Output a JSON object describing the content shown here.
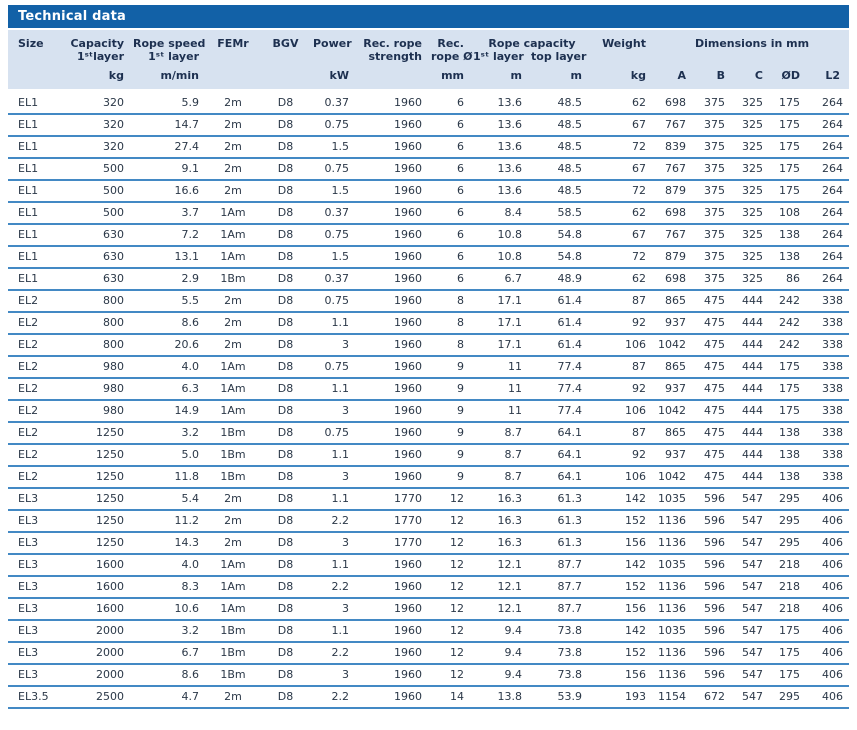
{
  "title": "Technical data",
  "header": {
    "size": "Size",
    "capacity_l1": "Capacity",
    "capacity_l2": "1ˢᵗlayer",
    "speed_l1": "Rope speed",
    "speed_l2": "1ˢᵗ layer",
    "femr": "FEMr",
    "bgv": "BGV",
    "power": "Power",
    "strength_l1": "Rec. rope",
    "strength_l2": "strength",
    "dia_l1": "Rec.",
    "dia_l2": "rope Ø*",
    "rope_capacity": "Rope capacity",
    "rc_first": "1ˢᵗ layer",
    "rc_top": "top layer",
    "weight": "Weight",
    "dimensions": "Dimensions in mm"
  },
  "units": [
    "",
    "kg",
    "m/min",
    "",
    "",
    "kW",
    "",
    "mm",
    "m",
    "m",
    "kg",
    "A",
    "B",
    "C",
    "ØD",
    "L2"
  ],
  "rows": [
    [
      "EL1",
      "320",
      "5.9",
      "2m",
      "D8",
      "0.37",
      "1960",
      "6",
      "13.6",
      "48.5",
      "62",
      "698",
      "375",
      "325",
      "175",
      "264"
    ],
    [
      "EL1",
      "320",
      "14.7",
      "2m",
      "D8",
      "0.75",
      "1960",
      "6",
      "13.6",
      "48.5",
      "67",
      "767",
      "375",
      "325",
      "175",
      "264"
    ],
    [
      "EL1",
      "320",
      "27.4",
      "2m",
      "D8",
      "1.5",
      "1960",
      "6",
      "13.6",
      "48.5",
      "72",
      "839",
      "375",
      "325",
      "175",
      "264"
    ],
    [
      "EL1",
      "500",
      "9.1",
      "2m",
      "D8",
      "0.75",
      "1960",
      "6",
      "13.6",
      "48.5",
      "67",
      "767",
      "375",
      "325",
      "175",
      "264"
    ],
    [
      "EL1",
      "500",
      "16.6",
      "2m",
      "D8",
      "1.5",
      "1960",
      "6",
      "13.6",
      "48.5",
      "72",
      "879",
      "375",
      "325",
      "175",
      "264"
    ],
    [
      "EL1",
      "500",
      "3.7",
      "1Am",
      "D8",
      "0.37",
      "1960",
      "6",
      "8.4",
      "58.5",
      "62",
      "698",
      "375",
      "325",
      "108",
      "264"
    ],
    [
      "EL1",
      "630",
      "7.2",
      "1Am",
      "D8",
      "0.75",
      "1960",
      "6",
      "10.8",
      "54.8",
      "67",
      "767",
      "375",
      "325",
      "138",
      "264"
    ],
    [
      "EL1",
      "630",
      "13.1",
      "1Am",
      "D8",
      "1.5",
      "1960",
      "6",
      "10.8",
      "54.8",
      "72",
      "879",
      "375",
      "325",
      "138",
      "264"
    ],
    [
      "EL1",
      "630",
      "2.9",
      "1Bm",
      "D8",
      "0.37",
      "1960",
      "6",
      "6.7",
      "48.9",
      "62",
      "698",
      "375",
      "325",
      "86",
      "264"
    ],
    [
      "EL2",
      "800",
      "5.5",
      "2m",
      "D8",
      "0.75",
      "1960",
      "8",
      "17.1",
      "61.4",
      "87",
      "865",
      "475",
      "444",
      "242",
      "338"
    ],
    [
      "EL2",
      "800",
      "8.6",
      "2m",
      "D8",
      "1.1",
      "1960",
      "8",
      "17.1",
      "61.4",
      "92",
      "937",
      "475",
      "444",
      "242",
      "338"
    ],
    [
      "EL2",
      "800",
      "20.6",
      "2m",
      "D8",
      "3",
      "1960",
      "8",
      "17.1",
      "61.4",
      "106",
      "1042",
      "475",
      "444",
      "242",
      "338"
    ],
    [
      "EL2",
      "980",
      "4.0",
      "1Am",
      "D8",
      "0.75",
      "1960",
      "9",
      "11",
      "77.4",
      "87",
      "865",
      "475",
      "444",
      "175",
      "338"
    ],
    [
      "EL2",
      "980",
      "6.3",
      "1Am",
      "D8",
      "1.1",
      "1960",
      "9",
      "11",
      "77.4",
      "92",
      "937",
      "475",
      "444",
      "175",
      "338"
    ],
    [
      "EL2",
      "980",
      "14.9",
      "1Am",
      "D8",
      "3",
      "1960",
      "9",
      "11",
      "77.4",
      "106",
      "1042",
      "475",
      "444",
      "175",
      "338"
    ],
    [
      "EL2",
      "1250",
      "3.2",
      "1Bm",
      "D8",
      "0.75",
      "1960",
      "9",
      "8.7",
      "64.1",
      "87",
      "865",
      "475",
      "444",
      "138",
      "338"
    ],
    [
      "EL2",
      "1250",
      "5.0",
      "1Bm",
      "D8",
      "1.1",
      "1960",
      "9",
      "8.7",
      "64.1",
      "92",
      "937",
      "475",
      "444",
      "138",
      "338"
    ],
    [
      "EL2",
      "1250",
      "11.8",
      "1Bm",
      "D8",
      "3",
      "1960",
      "9",
      "8.7",
      "64.1",
      "106",
      "1042",
      "475",
      "444",
      "138",
      "338"
    ],
    [
      "EL3",
      "1250",
      "5.4",
      "2m",
      "D8",
      "1.1",
      "1770",
      "12",
      "16.3",
      "61.3",
      "142",
      "1035",
      "596",
      "547",
      "295",
      "406"
    ],
    [
      "EL3",
      "1250",
      "11.2",
      "2m",
      "D8",
      "2.2",
      "1770",
      "12",
      "16.3",
      "61.3",
      "152",
      "1136",
      "596",
      "547",
      "295",
      "406"
    ],
    [
      "EL3",
      "1250",
      "14.3",
      "2m",
      "D8",
      "3",
      "1770",
      "12",
      "16.3",
      "61.3",
      "156",
      "1136",
      "596",
      "547",
      "295",
      "406"
    ],
    [
      "EL3",
      "1600",
      "4.0",
      "1Am",
      "D8",
      "1.1",
      "1960",
      "12",
      "12.1",
      "87.7",
      "142",
      "1035",
      "596",
      "547",
      "218",
      "406"
    ],
    [
      "EL3",
      "1600",
      "8.3",
      "1Am",
      "D8",
      "2.2",
      "1960",
      "12",
      "12.1",
      "87.7",
      "152",
      "1136",
      "596",
      "547",
      "218",
      "406"
    ],
    [
      "EL3",
      "1600",
      "10.6",
      "1Am",
      "D8",
      "3",
      "1960",
      "12",
      "12.1",
      "87.7",
      "156",
      "1136",
      "596",
      "547",
      "218",
      "406"
    ],
    [
      "EL3",
      "2000",
      "3.2",
      "1Bm",
      "D8",
      "1.1",
      "1960",
      "12",
      "9.4",
      "73.8",
      "142",
      "1035",
      "596",
      "547",
      "175",
      "406"
    ],
    [
      "EL3",
      "2000",
      "6.7",
      "1Bm",
      "D8",
      "2.2",
      "1960",
      "12",
      "9.4",
      "73.8",
      "152",
      "1136",
      "596",
      "547",
      "175",
      "406"
    ],
    [
      "EL3",
      "2000",
      "8.6",
      "1Bm",
      "D8",
      "3",
      "1960",
      "12",
      "9.4",
      "73.8",
      "156",
      "1136",
      "596",
      "547",
      "175",
      "406"
    ],
    [
      "EL3.5",
      "2500",
      "4.7",
      "2m",
      "D8",
      "2.2",
      "1960",
      "14",
      "13.8",
      "53.9",
      "193",
      "1154",
      "672",
      "547",
      "295",
      "406"
    ]
  ],
  "colors": {
    "banner_blue": "#1261a7",
    "header_bg": "#d7e2f0",
    "row_line_blue": "#4389c4",
    "text": "#2b3848"
  }
}
